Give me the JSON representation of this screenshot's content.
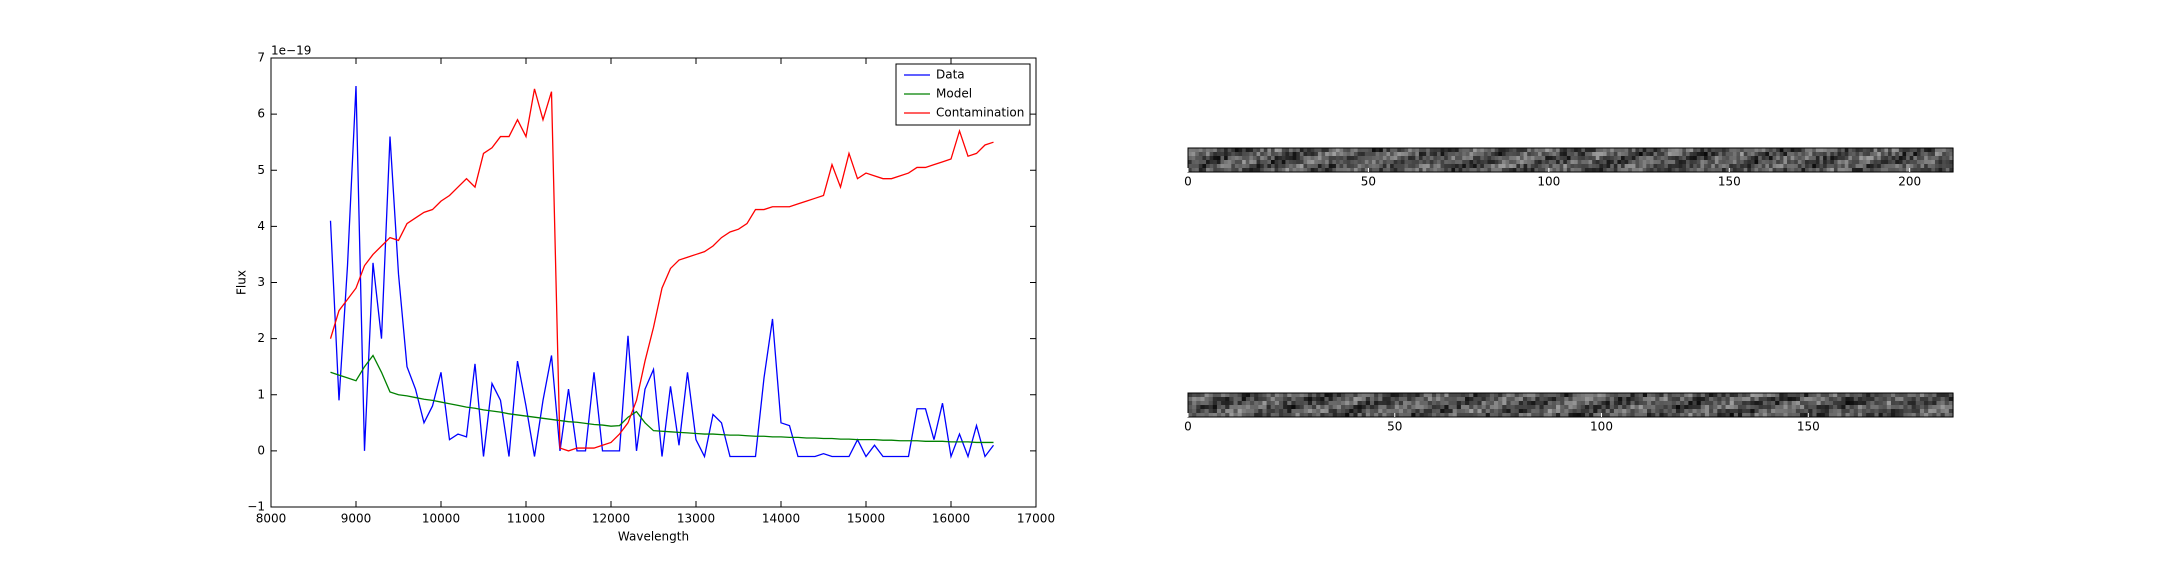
{
  "chart_data": [
    {
      "type": "line",
      "offset_label": "1e−19",
      "xlabel": "Wavelength",
      "ylabel": "Flux",
      "xlim": [
        8000,
        17000
      ],
      "xticks": [
        8000,
        9000,
        10000,
        11000,
        12000,
        13000,
        14000,
        15000,
        16000,
        17000
      ],
      "ylim": [
        -1,
        7
      ],
      "yticks": [
        {
          "value": -1,
          "label": "−1"
        },
        0,
        1,
        2,
        3,
        4,
        5,
        6,
        7
      ],
      "legend": "upper right",
      "x": [
        8700,
        8800,
        8900,
        9000,
        9100,
        9200,
        9300,
        9400,
        9500,
        9600,
        9700,
        9800,
        9900,
        10000,
        10100,
        10200,
        10300,
        10400,
        10500,
        10600,
        10700,
        10800,
        10900,
        11000,
        11100,
        11200,
        11300,
        11400,
        11500,
        11600,
        11700,
        11800,
        11900,
        12000,
        12100,
        12200,
        12300,
        12400,
        12500,
        12600,
        12700,
        12800,
        12900,
        13000,
        13100,
        13200,
        13300,
        13400,
        13500,
        13600,
        13700,
        13800,
        13900,
        14000,
        14100,
        14200,
        14300,
        14400,
        14500,
        14600,
        14700,
        14800,
        14900,
        15000,
        15100,
        15200,
        15300,
        15400,
        15500,
        15600,
        15700,
        15800,
        15900,
        16000,
        16100,
        16200,
        16300,
        16400,
        16500
      ],
      "series": [
        {
          "name": "Data",
          "color": "#0000ff",
          "values": [
            4.1,
            0.9,
            3.3,
            6.5,
            0.0,
            3.35,
            2.0,
            5.6,
            3.15,
            1.5,
            1.1,
            0.5,
            0.8,
            1.4,
            0.2,
            0.3,
            0.25,
            1.55,
            -0.1,
            1.2,
            0.9,
            -0.1,
            1.6,
            0.8,
            -0.1,
            0.9,
            1.7,
            0.0,
            1.1,
            0.0,
            0.0,
            1.4,
            0.0,
            0.0,
            0.0,
            2.05,
            0.0,
            1.1,
            1.45,
            -0.1,
            1.15,
            0.1,
            1.4,
            0.2,
            -0.1,
            0.65,
            0.5,
            -0.1,
            -0.1,
            -0.1,
            -0.1,
            1.3,
            2.35,
            0.5,
            0.45,
            -0.1,
            -0.1,
            -0.1,
            -0.05,
            -0.1,
            -0.1,
            -0.1,
            0.2,
            -0.1,
            0.1,
            -0.1,
            -0.1,
            -0.1,
            -0.1,
            0.75,
            0.75,
            0.2,
            0.85,
            -0.1,
            0.3,
            -0.1,
            0.45,
            -0.1,
            0.1
          ]
        },
        {
          "name": "Model",
          "color": "#008000",
          "values": [
            1.4,
            1.35,
            1.3,
            1.25,
            1.5,
            1.7,
            1.4,
            1.05,
            1.0,
            0.98,
            0.95,
            0.92,
            0.9,
            0.87,
            0.84,
            0.81,
            0.78,
            0.76,
            0.73,
            0.71,
            0.69,
            0.66,
            0.64,
            0.62,
            0.6,
            0.58,
            0.56,
            0.54,
            0.52,
            0.51,
            0.49,
            0.47,
            0.46,
            0.44,
            0.45,
            0.6,
            0.7,
            0.5,
            0.36,
            0.35,
            0.34,
            0.33,
            0.32,
            0.31,
            0.3,
            0.3,
            0.29,
            0.28,
            0.28,
            0.27,
            0.26,
            0.26,
            0.25,
            0.25,
            0.24,
            0.24,
            0.23,
            0.23,
            0.22,
            0.22,
            0.21,
            0.21,
            0.2,
            0.2,
            0.2,
            0.19,
            0.19,
            0.18,
            0.18,
            0.18,
            0.17,
            0.17,
            0.17,
            0.16,
            0.16,
            0.16,
            0.15,
            0.15,
            0.15
          ]
        },
        {
          "name": "Contamination",
          "color": "#ff0000",
          "values": [
            2.0,
            2.5,
            2.7,
            2.9,
            3.3,
            3.5,
            3.65,
            3.8,
            3.75,
            4.05,
            4.15,
            4.25,
            4.3,
            4.45,
            4.55,
            4.7,
            4.85,
            4.7,
            5.3,
            5.4,
            5.6,
            5.6,
            5.9,
            5.6,
            6.45,
            5.9,
            6.4,
            0.05,
            0.0,
            0.05,
            0.05,
            0.05,
            0.1,
            0.15,
            0.3,
            0.5,
            0.9,
            1.6,
            2.2,
            2.9,
            3.25,
            3.4,
            3.45,
            3.5,
            3.55,
            3.65,
            3.8,
            3.9,
            3.95,
            4.05,
            4.3,
            4.3,
            4.35,
            4.35,
            4.35,
            4.4,
            4.45,
            4.5,
            4.55,
            5.1,
            4.7,
            5.3,
            4.85,
            4.95,
            4.9,
            4.85,
            4.85,
            4.9,
            4.95,
            5.05,
            5.05,
            5.1,
            5.15,
            5.2,
            5.7,
            5.25,
            5.3,
            5.45,
            5.5
          ]
        }
      ]
    },
    {
      "type": "image",
      "xlim": [
        0,
        212
      ],
      "xticks": [
        0,
        50,
        100,
        150,
        200
      ]
    },
    {
      "type": "image",
      "xlim": [
        0,
        185
      ],
      "xticks": [
        0,
        50,
        100,
        150
      ]
    }
  ]
}
